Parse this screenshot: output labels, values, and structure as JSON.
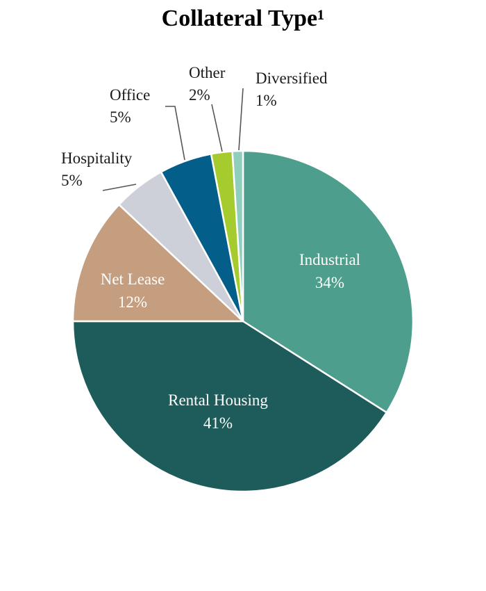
{
  "chart_data": {
    "type": "pie",
    "title": "Collateral Type¹",
    "slices": [
      {
        "label": "Industrial",
        "value": 34,
        "value_label": "34%",
        "color": "#4d9e8c",
        "text_color": "#ffffff"
      },
      {
        "label": "Rental Housing",
        "value": 41,
        "value_label": "41%",
        "color": "#1d5c5a",
        "text_color": "#ffffff"
      },
      {
        "label": "Net Lease",
        "value": 12,
        "value_label": "12%",
        "color": "#c49e7e",
        "text_color": "#ffffff"
      },
      {
        "label": "Hospitality",
        "value": 5,
        "value_label": "5%",
        "color": "#cdd0d8",
        "text_color": "#1a1a1a"
      },
      {
        "label": "Office",
        "value": 5,
        "value_label": "5%",
        "color": "#045e8a",
        "text_color": "#1a1a1a"
      },
      {
        "label": "Other",
        "value": 2,
        "value_label": "2%",
        "color": "#a6cb2e",
        "text_color": "#1a1a1a"
      },
      {
        "label": "Diversified",
        "value": 1,
        "value_label": "1%",
        "color": "#8fcdbd",
        "text_color": "#1a1a1a"
      }
    ],
    "start": "12 o'clock",
    "direction": "clockwise",
    "legend": "none"
  }
}
